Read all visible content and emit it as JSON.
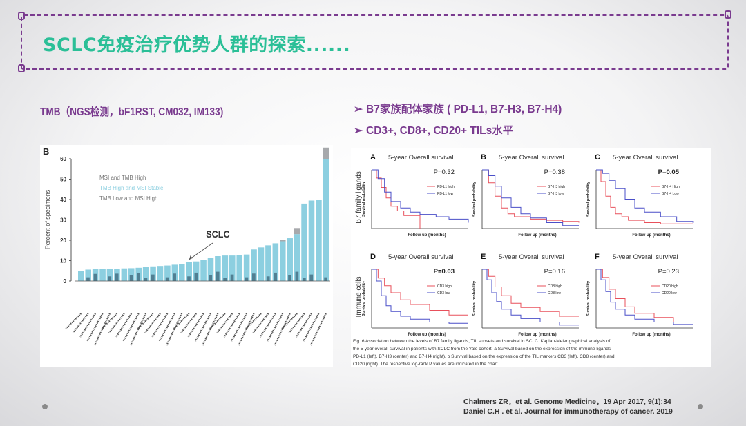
{
  "slide": {
    "title": "SCLC免疫治疗优势人群的探索......",
    "tmb_heading": "TMB（NGS检测，bF1RST, CM032, IM133)",
    "bullets": [
      {
        "arrow": "➢",
        "text": "B7家族配体家族 ( PD-L1, B7-H3, B7-H4)"
      },
      {
        "arrow": "➢",
        "text": "CD3+, CD8+, CD20+ TILs水平"
      }
    ],
    "citations": [
      "Chalmers ZR，et al. Genome Medicine，19 Apr 2017, 9(1):34",
      "Daniel C.H . et al. Journal for immunotherapy of cancer. 2019"
    ]
  },
  "colors": {
    "title": "#2bbf97",
    "purple": "#7a3b8f",
    "bar_light": "#8ccfe0",
    "bar_dark": "#3d6478",
    "bar_gray": "#a7a9ac",
    "km_red": "#e8505b",
    "km_blue": "#4a4fc8"
  },
  "chart_data": [
    {
      "type": "bar",
      "panel_label": "B",
      "ylabel": "Percent of specimens",
      "ylim": [
        0,
        60
      ],
      "yticks": [
        0,
        10,
        20,
        30,
        40,
        50,
        60
      ],
      "legend": [
        "MSI and TMB High",
        "TMB High and MSI Stable",
        "TMB Low and MSI High"
      ],
      "annotation": "SCLC",
      "annotation_index": 15,
      "series": [
        {
          "name": "TMB High and MSI Stable",
          "values": [
            5,
            5.6,
            5.8,
            5.9,
            6,
            6,
            6.2,
            6.3,
            6.5,
            7,
            7.2,
            7.4,
            7.6,
            8,
            8.4,
            9.4,
            9.6,
            10.2,
            11.2,
            12.2,
            12.5,
            12.5,
            12.8,
            13,
            15.5,
            16.5,
            17.5,
            18.5,
            19.5,
            21,
            23,
            38,
            39.5,
            40,
            60
          ]
        },
        {
          "name": "MSI and TMB High",
          "values": [
            0,
            0,
            0,
            0,
            0,
            0,
            0,
            0,
            0,
            0,
            0,
            0,
            0,
            0,
            0,
            0,
            0,
            0,
            0,
            0,
            0,
            0,
            0,
            0,
            0,
            0,
            0,
            0,
            0.5,
            0,
            3,
            0,
            0,
            0,
            5.5
          ]
        },
        {
          "name": "TMB Low and MSI High",
          "values": [
            0,
            0,
            0,
            0,
            0,
            0,
            0,
            0,
            0,
            0,
            0,
            0,
            0,
            0,
            0,
            0,
            0,
            0,
            0,
            0,
            0,
            0,
            0,
            0,
            0,
            0,
            0,
            0,
            0,
            0,
            0,
            0,
            0,
            0,
            0
          ]
        }
      ]
    },
    {
      "type": "line",
      "panel_label": "A",
      "row_label": "B7 family ligands",
      "title": "5-year Overall survival",
      "p": "P=0.32",
      "p_bold": false,
      "xlabel": "Follow up (months)",
      "ylabel": "Survival probability",
      "series": [
        {
          "name": "PD-L1 high",
          "x": [
            0,
            3,
            6,
            9,
            12,
            16,
            20,
            24,
            30
          ],
          "y": [
            1,
            0.86,
            0.7,
            0.52,
            0.38,
            0.3,
            0.22,
            0.22,
            0
          ]
        },
        {
          "name": "PD-L1 low",
          "x": [
            0,
            4,
            8,
            12,
            18,
            24,
            30,
            40,
            48,
            60
          ],
          "y": [
            1,
            0.85,
            0.62,
            0.46,
            0.35,
            0.28,
            0.24,
            0.2,
            0.16,
            0.1
          ]
        }
      ]
    },
    {
      "type": "line",
      "panel_label": "B",
      "title": "5-year Overall survival",
      "p": "P=0.38",
      "p_bold": false,
      "xlabel": "Follow up (months)",
      "ylabel": "Survival probability",
      "series": [
        {
          "name": "B7-H3 high",
          "x": [
            0,
            4,
            8,
            12,
            16,
            20,
            30,
            40,
            50,
            60
          ],
          "y": [
            1,
            0.78,
            0.55,
            0.35,
            0.25,
            0.2,
            0.16,
            0.14,
            0.12,
            0.1
          ]
        },
        {
          "name": "B7-H3 low",
          "x": [
            0,
            4,
            8,
            12,
            18,
            24,
            30,
            40,
            50,
            60
          ],
          "y": [
            1,
            0.9,
            0.72,
            0.52,
            0.36,
            0.25,
            0.18,
            0.1,
            0.05,
            0.05
          ]
        }
      ]
    },
    {
      "type": "line",
      "panel_label": "C",
      "title": "5-year Overall survival",
      "p": "P=0.05",
      "p_bold": true,
      "xlabel": "Follow up (months)",
      "ylabel": "Survival probability",
      "series": [
        {
          "name": "B7-H4 High",
          "x": [
            0,
            3,
            6,
            9,
            12,
            16,
            20,
            30,
            40,
            60
          ],
          "y": [
            1,
            0.8,
            0.55,
            0.36,
            0.25,
            0.2,
            0.14,
            0.1,
            0.08,
            0.08
          ]
        },
        {
          "name": "B7-H4 Low",
          "x": [
            0,
            4,
            8,
            12,
            18,
            24,
            30,
            40,
            50,
            60
          ],
          "y": [
            1,
            0.94,
            0.82,
            0.68,
            0.5,
            0.35,
            0.28,
            0.2,
            0.12,
            0.1
          ]
        }
      ]
    },
    {
      "type": "line",
      "panel_label": "D",
      "row_label": "Immune cells",
      "title": "5-year Overall survival",
      "p": "P=0.03",
      "p_bold": true,
      "xlabel": "Follow up (months)",
      "ylabel": "Survival probability",
      "series": [
        {
          "name": "CD3 high",
          "x": [
            0,
            4,
            8,
            12,
            18,
            24,
            36,
            48,
            60
          ],
          "y": [
            1,
            0.85,
            0.72,
            0.6,
            0.48,
            0.4,
            0.3,
            0.22,
            0.22
          ]
        },
        {
          "name": "CD3 low",
          "x": [
            0,
            3,
            6,
            9,
            12,
            18,
            24,
            36,
            48,
            60
          ],
          "y": [
            1,
            0.8,
            0.55,
            0.38,
            0.28,
            0.2,
            0.15,
            0.1,
            0.08,
            0.08
          ]
        }
      ]
    },
    {
      "type": "line",
      "panel_label": "E",
      "title": "5-year Overall survival",
      "p": "P=0.16",
      "p_bold": false,
      "xlabel": "Follow up (months)",
      "ylabel": "Survival probability",
      "series": [
        {
          "name": "CD8 high",
          "x": [
            0,
            4,
            8,
            12,
            18,
            24,
            36,
            48,
            60
          ],
          "y": [
            1,
            0.88,
            0.7,
            0.55,
            0.42,
            0.35,
            0.28,
            0.2,
            0.2
          ]
        },
        {
          "name": "CD8 low",
          "x": [
            0,
            3,
            6,
            9,
            12,
            18,
            24,
            36,
            48,
            60
          ],
          "y": [
            1,
            0.82,
            0.6,
            0.45,
            0.32,
            0.22,
            0.16,
            0.1,
            0.05,
            0.05
          ]
        }
      ]
    },
    {
      "type": "line",
      "panel_label": "F",
      "title": "5-year Overall survival",
      "p": "P=0.23",
      "p_bold": false,
      "xlabel": "Follow up (months)",
      "ylabel": "Survival probability",
      "series": [
        {
          "name": "CD20 high",
          "x": [
            0,
            4,
            8,
            12,
            18,
            24,
            36,
            48,
            60
          ],
          "y": [
            1,
            0.86,
            0.66,
            0.5,
            0.36,
            0.25,
            0.18,
            0.1,
            0.1
          ]
        },
        {
          "name": "CD20 low",
          "x": [
            0,
            3,
            6,
            9,
            12,
            18,
            24,
            36,
            48,
            60
          ],
          "y": [
            1,
            0.82,
            0.62,
            0.44,
            0.32,
            0.22,
            0.15,
            0.1,
            0.06,
            0.06
          ]
        }
      ]
    }
  ],
  "figure_caption": "Fig. 6 Association between the levels of B7 family ligands, TIL subsets and survival in SCLC. Kaplan-Meier graphical analysis of the 5-year overall survival in patients with SCLC from the Yale cohort. a Survival based on the expression of the immune ligands PD-L1 (left), B7-H3 (center) and B7-H4 (right). b Survival based on the expression of the TIL markers CD3 (left), CD8 (center) and CD20 (right). The respective log-rank P values are indicated in the chart"
}
